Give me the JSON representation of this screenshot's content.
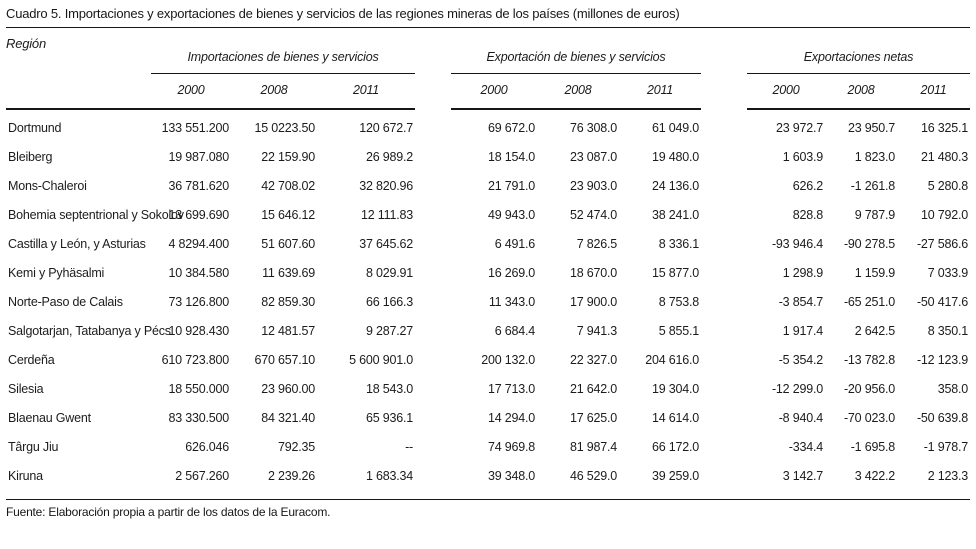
{
  "title": "Cuadro 5. Importaciones y exportaciones de bienes y servicios de las regiones mineras de los países (millones de euros)",
  "table": {
    "region_header": "Región",
    "groups": [
      {
        "label": "Importaciones de bienes y servicios",
        "years": [
          "2000",
          "2008",
          "2011"
        ]
      },
      {
        "label": "Exportación de bienes y servicios",
        "years": [
          "2000",
          "2008",
          "2011"
        ]
      },
      {
        "label": "Exportaciones netas",
        "years": [
          "2000",
          "2008",
          "2011"
        ]
      }
    ],
    "rows": [
      {
        "region": "Dortmund",
        "importaciones": [
          "133 551.200",
          "15 0223.50",
          "120 672.7"
        ],
        "exportaciones": [
          "69 672.0",
          "76 308.0",
          "61 049.0"
        ],
        "netas": [
          "23 972.7",
          "23 950.7",
          "16 325.1"
        ]
      },
      {
        "region": "Bleiberg",
        "importaciones": [
          "19 987.080",
          "22 159.90",
          "26 989.2"
        ],
        "exportaciones": [
          "18 154.0",
          "23 087.0",
          "19 480.0"
        ],
        "netas": [
          "1 603.9",
          "1 823.0",
          "21 480.3"
        ]
      },
      {
        "region": "Mons-Chaleroi",
        "importaciones": [
          "36 781.620",
          "42 708.02",
          "32 820.96"
        ],
        "exportaciones": [
          "21 791.0",
          "23 903.0",
          "24 136.0"
        ],
        "netas": [
          "626.2",
          "-1 261.8",
          "5 280.8"
        ]
      },
      {
        "region": "Bohemia septentrional y Sokolov",
        "importaciones": [
          "13 699.690",
          "15 646.12",
          "12 111.83"
        ],
        "exportaciones": [
          "49 943.0",
          "52 474.0",
          "38 241.0"
        ],
        "netas": [
          "828.8",
          "9 787.9",
          "10 792.0"
        ]
      },
      {
        "region": "Castilla y León, y Asturias",
        "importaciones": [
          "4 8294.400",
          "51 607.60",
          "37 645.62"
        ],
        "exportaciones": [
          "6 491.6",
          "7 826.5",
          "8 336.1"
        ],
        "netas": [
          "-93 946.4",
          "-90 278.5",
          "-27 586.6"
        ]
      },
      {
        "region": "Kemi y Pyhäsalmi",
        "importaciones": [
          "10 384.580",
          "11 639.69",
          "8 029.91"
        ],
        "exportaciones": [
          "16 269.0",
          "18 670.0",
          "15 877.0"
        ],
        "netas": [
          "1 298.9",
          "1 159.9",
          "7 033.9"
        ]
      },
      {
        "region": "Norte-Paso de Calais",
        "importaciones": [
          "73 126.800",
          "82 859.30",
          "66 166.3"
        ],
        "exportaciones": [
          "11 343.0",
          "17 900.0",
          "8 753.8"
        ],
        "netas": [
          "-3 854.7",
          "-65 251.0",
          "-50 417.6"
        ]
      },
      {
        "region": "Salgotarjan, Tatabanya y Pécs",
        "importaciones": [
          "10 928.430",
          "12 481.57",
          "9 287.27"
        ],
        "exportaciones": [
          "6 684.4",
          "7 941.3",
          "5 855.1"
        ],
        "netas": [
          "1 917.4",
          "2 642.5",
          "8 350.1"
        ]
      },
      {
        "region": "Cerdeña",
        "importaciones": [
          "610 723.800",
          "670 657.10",
          "5 600 901.0"
        ],
        "exportaciones": [
          "200 132.0",
          "22 327.0",
          "204 616.0"
        ],
        "netas": [
          "-5 354.2",
          "-13 782.8",
          "-12 123.9"
        ]
      },
      {
        "region": "Silesia",
        "importaciones": [
          "18 550.000",
          "23 960.00",
          "18 543.0"
        ],
        "exportaciones": [
          "17 713.0",
          "21 642.0",
          "19 304.0"
        ],
        "netas": [
          "-12 299.0",
          "-20 956.0",
          "358.0"
        ]
      },
      {
        "region": "Blaenau Gwent",
        "importaciones": [
          "83 330.500",
          "84 321.40",
          "65 936.1"
        ],
        "exportaciones": [
          "14 294.0",
          "17 625.0",
          "14 614.0"
        ],
        "netas": [
          "-8 940.4",
          "-70 023.0",
          "-50 639.8"
        ]
      },
      {
        "region": "Târgu Jiu",
        "importaciones": [
          "626.046",
          "792.35",
          "--"
        ],
        "exportaciones": [
          "74 969.8",
          "81 987.4",
          "66 172.0"
        ],
        "netas": [
          "-334.4",
          "-1 695.8",
          "-1 978.7"
        ]
      },
      {
        "region": "Kiruna",
        "importaciones": [
          "2 567.260",
          "2 239.26",
          "1 683.34"
        ],
        "exportaciones": [
          "39 348.0",
          "46 529.0",
          "39 259.0"
        ],
        "netas": [
          "3 142.7",
          "3 422.2",
          "2 123.3"
        ]
      }
    ]
  },
  "footer": "Fuente: Elaboración propia a partir de los datos de la Euracom."
}
